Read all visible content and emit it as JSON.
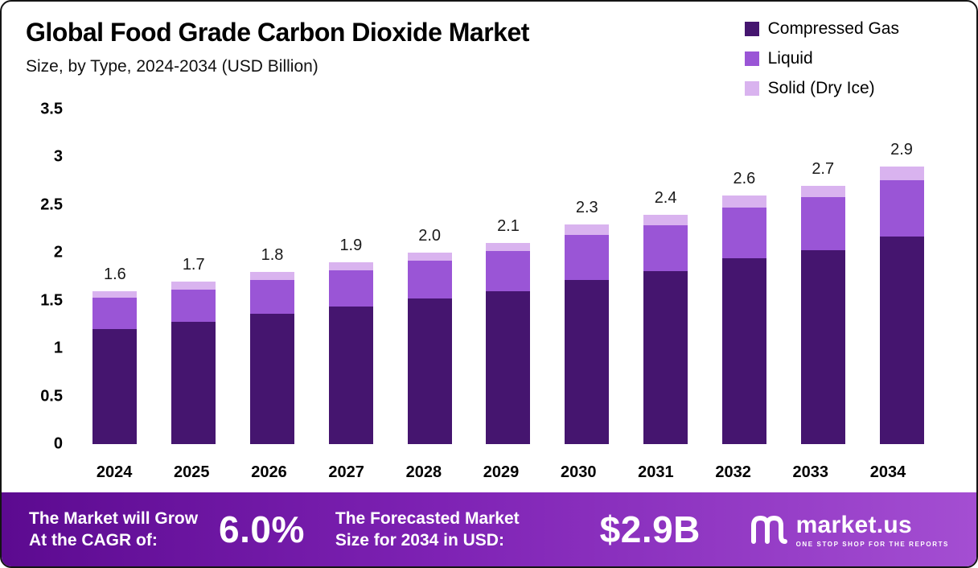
{
  "title": "Global Food Grade Carbon Dioxide Market",
  "subtitle": "Size, by Type, 2024-2034 (USD Billion)",
  "legend": [
    {
      "label": "Compressed Gas",
      "color": "#45156f"
    },
    {
      "label": "Liquid",
      "color": "#9a55d6"
    },
    {
      "label": "Solid (Dry Ice)",
      "color": "#d9b3ef"
    }
  ],
  "chart_data": {
    "type": "bar",
    "stacked": true,
    "grid": false,
    "legend_position": "top-right",
    "categories": [
      "2024",
      "2025",
      "2026",
      "2027",
      "2028",
      "2029",
      "2030",
      "2031",
      "2032",
      "2033",
      "2034"
    ],
    "series": [
      {
        "name": "Compressed Gas",
        "color": "#45156f",
        "values": [
          1.2,
          1.28,
          1.36,
          1.44,
          1.52,
          1.6,
          1.72,
          1.81,
          1.94,
          2.03,
          2.17
        ]
      },
      {
        "name": "Liquid",
        "color": "#9a55d6",
        "values": [
          0.33,
          0.34,
          0.36,
          0.38,
          0.4,
          0.42,
          0.47,
          0.48,
          0.53,
          0.55,
          0.59
        ]
      },
      {
        "name": "Solid (Dry Ice)",
        "color": "#d9b3ef",
        "values": [
          0.07,
          0.08,
          0.08,
          0.08,
          0.08,
          0.08,
          0.11,
          0.11,
          0.13,
          0.12,
          0.14
        ]
      }
    ],
    "totals": [
      1.6,
      1.7,
      1.8,
      1.9,
      2.0,
      2.1,
      2.3,
      2.4,
      2.6,
      2.7,
      2.9
    ],
    "total_labels": [
      "1.6",
      "1.7",
      "1.8",
      "1.9",
      "2.0",
      "2.1",
      "2.3",
      "2.4",
      "2.6",
      "2.7",
      "2.9"
    ],
    "ylim": [
      0,
      3.5
    ],
    "yticks": [
      3.5,
      3,
      2.5,
      2,
      1.5,
      1,
      0.5,
      0
    ],
    "ytick_labels": [
      "3.5",
      "3",
      "2.5",
      "2",
      "1.5",
      "1",
      "0.5",
      "0"
    ],
    "xlabel": "",
    "ylabel": ""
  },
  "banner": {
    "cagr_line1": "The Market will Grow",
    "cagr_line2": "At the CAGR of:",
    "cagr_value": "6.0%",
    "forecast_line1": "The Forecasted Market",
    "forecast_line2": "Size for 2034 in USD:",
    "forecast_value": "$2.9B",
    "brand": "market.us",
    "brand_tagline": "ONE STOP SHOP FOR THE REPORTS"
  }
}
